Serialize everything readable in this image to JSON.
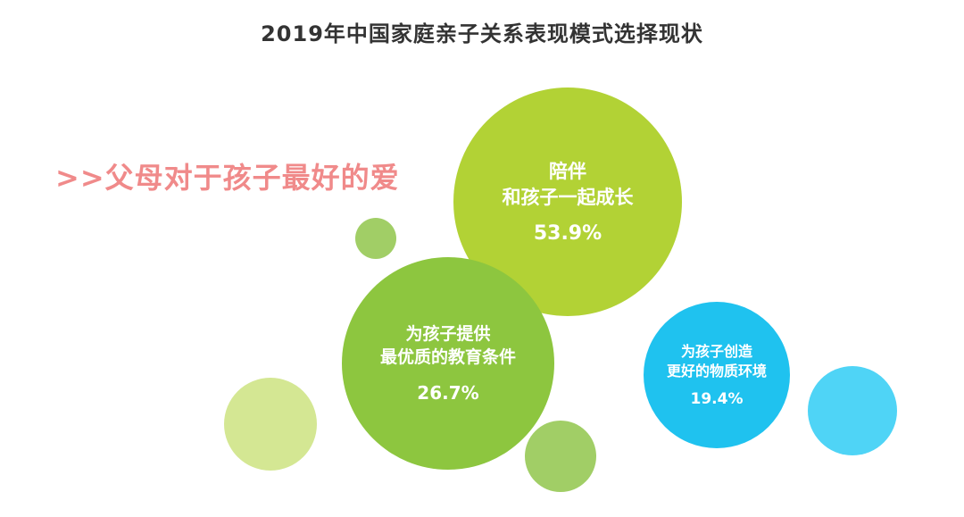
{
  "title": "2019年中国家庭亲子关系表现模式选择现状",
  "subtitle": ">>父母对于孩子最好的爱",
  "colors": {
    "primary_green": "#b2d235",
    "mid_green": "#8dc63f",
    "blue": "#1fc2ef",
    "light_green": "#d4e793",
    "soft_green": "#a1ce66",
    "light_blue": "#4fd4f6",
    "subtitle_pink": "#f08a8a"
  },
  "chart_data": {
    "type": "bubble",
    "title": "2019年中国家庭亲子关系表现模式选择现状",
    "categories": [
      "陪伴和孩子一起成长",
      "为孩子提供最优质的教育条件",
      "为孩子创造更好的物质环境"
    ],
    "values": [
      53.9,
      26.7,
      19.4
    ],
    "unit": "%",
    "bubbles": [
      {
        "label_lines": [
          "陪伴",
          "和孩子一起成长"
        ],
        "value": 53.9,
        "value_label": "53.9%",
        "color": "#b2d235"
      },
      {
        "label_lines": [
          "为孩子提供",
          "最优质的教育条件"
        ],
        "value": 26.7,
        "value_label": "26.7%",
        "color": "#8dc63f"
      },
      {
        "label_lines": [
          "为孩子创造",
          "更好的物质环境"
        ],
        "value": 19.4,
        "value_label": "19.4%",
        "color": "#1fc2ef"
      }
    ]
  }
}
